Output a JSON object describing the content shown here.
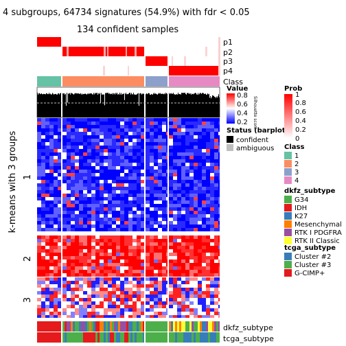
{
  "chart_data": {
    "type": "heatmap",
    "title": "4 subgroups, 64734 signatures (54.9%) with fdr < 0.05",
    "subtitle": "134 confident samples",
    "row_title": "k-means with 3 groups",
    "row_groups": [
      "1",
      "2",
      "3"
    ],
    "column_groups": [
      {
        "class": "1",
        "color": "#66C2A5"
      },
      {
        "class": "2",
        "color": "#FC8D62"
      },
      {
        "class": "3",
        "color": "#8DA0CB"
      },
      {
        "class": "4",
        "color": "#E78AC3"
      }
    ],
    "prob_rows": [
      "p1",
      "p2",
      "p3",
      "p4"
    ],
    "class_row_label": "Class",
    "silhouette_label": "Silhouette score",
    "bottom_annotation_labels": [
      "dkfz_subtype",
      "tcga_subtype"
    ],
    "value_legend": {
      "title": "Value",
      "ticks": [
        "0.8",
        "0.6",
        "0.4",
        "0.2"
      ],
      "colors": [
        "#FF0000",
        "#FFFFFF",
        "#0000FF"
      ]
    },
    "prob_legend": {
      "title": "Prob",
      "ticks": [
        "1",
        "0.8",
        "0.6",
        "0.4",
        "0.2",
        "0"
      ],
      "colors": [
        "#FF0000",
        "#FFFFFF"
      ]
    },
    "status_legend": {
      "title": "Status (barplots)",
      "items": [
        {
          "label": "confident",
          "color": "#000000"
        },
        {
          "label": "ambiguous",
          "color": "#BEBEBE"
        }
      ]
    },
    "class_legend": {
      "title": "Class",
      "items": [
        {
          "label": "1",
          "color": "#66C2A5"
        },
        {
          "label": "2",
          "color": "#FC8D62"
        },
        {
          "label": "3",
          "color": "#8DA0CB"
        },
        {
          "label": "4",
          "color": "#E78AC3"
        }
      ]
    },
    "dkfz_legend": {
      "title": "dkfz_subtype",
      "items": [
        {
          "label": "G34",
          "color": "#4DAF4A"
        },
        {
          "label": "IDH",
          "color": "#E41A1C"
        },
        {
          "label": "K27",
          "color": "#377EB8"
        },
        {
          "label": "Mesenchymal",
          "color": "#FF7F00"
        },
        {
          "label": "RTK I PDGFRA",
          "color": "#984EA3"
        },
        {
          "label": "RTK II Classic",
          "color": "#FFFF33"
        }
      ]
    },
    "tcga_legend": {
      "title": "tcga_subtype",
      "items": [
        {
          "label": "Cluster #2",
          "color": "#377EB8"
        },
        {
          "label": "Cluster #3",
          "color": "#4DAF4A"
        },
        {
          "label": "G-CIMP+",
          "color": "#E41A1C"
        }
      ]
    }
  }
}
